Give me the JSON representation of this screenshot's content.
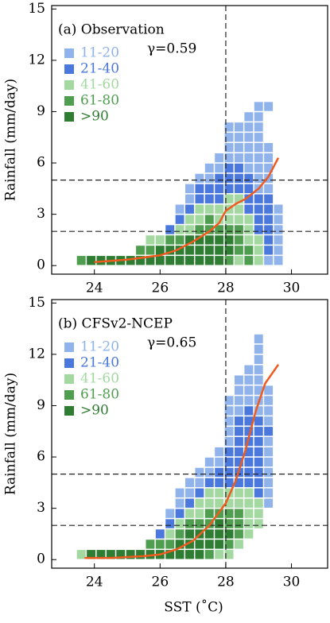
{
  "chart_data": [
    {
      "type": "heatmap",
      "title": "(a) Observation",
      "annotation": "γ=0.59",
      "ylabel": "Rainfall (mm/day)",
      "xlim": [
        22.7,
        31.1
      ],
      "xticks": [
        24,
        26,
        28,
        30
      ],
      "ylim": [
        -0.5,
        15.2
      ],
      "yticks": [
        0,
        3,
        6,
        9,
        12,
        15
      ],
      "vlines": [
        28
      ],
      "hlines": [
        2,
        5
      ],
      "legend": [
        {
          "name": "11-20",
          "color": "#8fb3ea"
        },
        {
          "name": "21-40",
          "color": "#4a78dc"
        },
        {
          "name": "41-60",
          "color": "#a3d8a0"
        },
        {
          "name": "61-80",
          "color": "#4f9e4f"
        },
        {
          "name": ">90",
          "color": "#2e7d32"
        }
      ],
      "x_bins": [
        23.6,
        23.9,
        24.2,
        24.5,
        24.8,
        25.1,
        25.4,
        25.7,
        26.0,
        26.3,
        26.6,
        26.9,
        27.2,
        27.5,
        27.8,
        28.1,
        28.4,
        28.7,
        29.0,
        29.3,
        29.6
      ],
      "y_bins": [
        0.3,
        0.9,
        1.5,
        2.1,
        2.7,
        3.3,
        3.9,
        4.5,
        5.1,
        5.7,
        6.3,
        6.9,
        7.5,
        8.1,
        8.7,
        9.3,
        9.9
      ],
      "classes": [
        [
          3
        ],
        [
          4
        ],
        [
          4
        ],
        [
          4
        ],
        [
          4
        ],
        [
          4
        ],
        [
          4,
          3
        ],
        [
          4,
          3,
          2
        ],
        [
          4,
          4,
          2
        ],
        [
          4,
          4,
          3,
          1
        ],
        [
          4,
          4,
          3,
          2,
          1,
          0
        ],
        [
          4,
          4,
          4,
          2,
          2,
          1,
          0,
          0
        ],
        [
          4,
          4,
          4,
          3,
          2,
          2,
          1,
          1,
          0
        ],
        [
          4,
          4,
          4,
          3,
          3,
          2,
          1,
          1,
          0,
          0
        ],
        [
          4,
          4,
          4,
          3,
          2,
          2,
          1,
          1,
          1,
          0,
          0
        ],
        [
          3,
          4,
          4,
          3,
          2,
          2,
          2,
          1,
          1,
          1,
          0,
          0,
          0,
          0
        ],
        [
          2,
          3,
          3,
          3,
          2,
          2,
          2,
          1,
          1,
          1,
          0,
          0,
          0,
          0
        ],
        [
          3,
          3,
          2,
          2,
          2,
          1,
          1,
          1,
          1,
          0,
          0,
          0,
          0,
          0,
          0
        ],
        [
          2,
          2,
          2,
          1,
          1,
          1,
          1,
          0,
          0,
          0,
          0,
          0,
          0,
          0,
          0,
          0
        ],
        [
          0,
          1,
          1,
          1,
          1,
          1,
          1,
          0,
          0,
          0,
          0,
          0,
          null,
          null,
          null,
          0
        ],
        [
          0,
          0,
          0,
          0,
          0,
          0
        ]
      ],
      "line": {
        "color": "#f05a1e",
        "x": [
          24.0,
          25.0,
          26.0,
          26.5,
          27.0,
          27.5,
          27.8,
          28.0,
          28.3,
          28.6,
          29.0,
          29.3,
          29.6
        ],
        "values": [
          0.2,
          0.35,
          0.6,
          0.9,
          1.4,
          2.0,
          2.5,
          3.2,
          3.6,
          3.9,
          4.5,
          5.2,
          6.3
        ]
      }
    },
    {
      "type": "heatmap",
      "title": "(b) CFSv2-NCEP",
      "annotation": "γ=0.65",
      "ylabel": "Rainfall (mm/day)",
      "xlabel": "SST (˚C)",
      "xlim": [
        22.7,
        31.1
      ],
      "xticks": [
        24,
        26,
        28,
        30
      ],
      "ylim": [
        -0.5,
        15.2
      ],
      "yticks": [
        0,
        3,
        6,
        9,
        12,
        15
      ],
      "vlines": [
        28
      ],
      "hlines": [
        2,
        5
      ],
      "legend": [
        {
          "name": "11-20",
          "color": "#8fb3ea"
        },
        {
          "name": "21-40",
          "color": "#4a78dc"
        },
        {
          "name": "41-60",
          "color": "#a3d8a0"
        },
        {
          "name": "61-80",
          "color": "#4f9e4f"
        },
        {
          "name": ">90",
          "color": "#2e7d32"
        }
      ],
      "x_bins": [
        23.6,
        23.9,
        24.2,
        24.5,
        24.8,
        25.1,
        25.4,
        25.7,
        26.0,
        26.3,
        26.6,
        26.9,
        27.2,
        27.5,
        27.8,
        28.1,
        28.4,
        28.7,
        29.0,
        29.3
      ],
      "y_bins": [
        0.3,
        0.9,
        1.5,
        2.1,
        2.7,
        3.3,
        3.9,
        4.5,
        5.1,
        5.7,
        6.3,
        6.9,
        7.5,
        8.1,
        8.7,
        9.3,
        9.9,
        10.5,
        11.1,
        11.7,
        12.3,
        12.9
      ],
      "classes": [
        [
          2
        ],
        [
          4
        ],
        [
          4
        ],
        [
          4
        ],
        [
          4
        ],
        [
          4
        ],
        [
          4
        ],
        [
          4,
          3
        ],
        [
          4,
          3,
          1
        ],
        [
          4,
          3,
          2,
          1,
          0
        ],
        [
          4,
          4,
          3,
          2,
          1,
          0,
          0
        ],
        [
          4,
          4,
          4,
          3,
          2,
          1,
          0,
          0
        ],
        [
          4,
          4,
          4,
          3,
          2,
          2,
          1,
          0,
          0
        ],
        [
          3,
          4,
          4,
          3,
          3,
          2,
          2,
          1,
          0,
          0
        ],
        [
          2,
          4,
          4,
          4,
          3,
          2,
          2,
          1,
          1,
          0,
          0
        ],
        [
          2,
          3,
          4,
          3,
          3,
          2,
          2,
          1,
          1,
          1,
          1,
          0,
          0,
          0,
          0,
          0
        ],
        [
          null,
          2,
          3,
          3,
          3,
          2,
          2,
          1,
          1,
          1,
          1,
          1,
          1,
          1,
          0,
          0,
          0,
          0
        ],
        [
          null,
          null,
          2,
          2,
          2,
          2,
          2,
          1,
          1,
          1,
          1,
          1,
          1,
          1,
          1,
          0,
          0,
          0,
          0
        ],
        [
          null,
          null,
          null,
          2,
          2,
          2,
          1,
          1,
          1,
          1,
          1,
          1,
          1,
          1,
          0,
          0,
          0,
          0,
          0,
          0,
          0,
          0
        ],
        [
          null,
          null,
          null,
          null,
          null,
          0,
          0,
          0,
          0,
          0,
          0,
          0,
          1,
          0,
          0,
          0,
          0
        ]
      ],
      "line": {
        "color": "#f05a1e",
        "x": [
          23.7,
          24.5,
          25.5,
          26.0,
          26.5,
          27.0,
          27.5,
          28.0,
          28.3,
          28.6,
          28.9,
          29.2,
          29.6
        ],
        "values": [
          0.1,
          0.1,
          0.2,
          0.3,
          0.6,
          1.1,
          2.0,
          3.3,
          4.6,
          6.4,
          8.6,
          10.3,
          11.4
        ]
      }
    }
  ]
}
